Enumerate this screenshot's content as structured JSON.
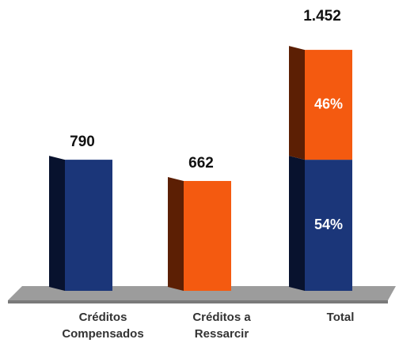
{
  "chart_data": {
    "type": "bar3d",
    "categories": [
      [
        "Créditos",
        "Compensados"
      ],
      [
        "Créditos a",
        "Ressarcir"
      ],
      [
        "Total"
      ]
    ],
    "values": [
      790,
      662,
      1452
    ],
    "value_labels": [
      "790",
      "662",
      "1.452"
    ],
    "shares": [
      54,
      46
    ],
    "share_labels": [
      "54%",
      "46%"
    ],
    "colors": [
      "#1b3679",
      "#f45a10"
    ]
  }
}
